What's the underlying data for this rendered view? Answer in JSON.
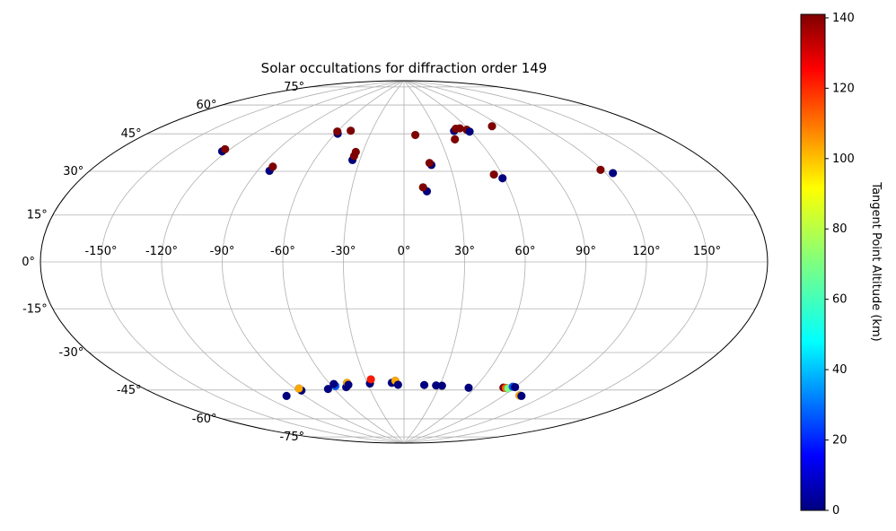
{
  "chart_data": {
    "type": "scatter",
    "projection": "aitoff",
    "title": "Solar occultations for diffraction order 149",
    "xlabel": "",
    "ylabel": "",
    "lon_ticks": [
      "-150°",
      "-120°",
      "-90°",
      "-60°",
      "-30°",
      "0°",
      "30°",
      "60°",
      "90°",
      "120°",
      "150°"
    ],
    "lat_ticks": [
      "75°",
      "60°",
      "45°",
      "30°",
      "15°",
      "0°",
      "-15°",
      "-30°",
      "-45°",
      "-60°",
      "-75°"
    ],
    "grid": true,
    "colorbar": {
      "label": "Tangent Point Altitude (km)",
      "colormap": "jet",
      "range": [
        0,
        141
      ],
      "ticks": [
        "0",
        "20",
        "40",
        "60",
        "80",
        "100",
        "120",
        "140"
      ]
    },
    "points": [
      {
        "lon": -123,
        "lat": 47,
        "alt": 0
      },
      {
        "lon": -123,
        "lat": 48,
        "alt": 141
      },
      {
        "lon": -83,
        "lat": 42,
        "alt": 0
      },
      {
        "lon": -83,
        "lat": 44,
        "alt": 141
      },
      {
        "lon": -58,
        "lat": 62,
        "alt": 0
      },
      {
        "lon": -49,
        "lat": 64,
        "alt": 141
      },
      {
        "lon": -60,
        "lat": 63,
        "alt": 141
      },
      {
        "lon": -35,
        "lat": 50,
        "alt": 0
      },
      {
        "lon": -35,
        "lat": 52,
        "alt": 141
      },
      {
        "lon": -35,
        "lat": 54,
        "alt": 141
      },
      {
        "lon": 10,
        "lat": 63,
        "alt": 141
      },
      {
        "lon": 18,
        "lat": 48,
        "alt": 0
      },
      {
        "lon": 17,
        "lat": 49,
        "alt": 141
      },
      {
        "lon": 13,
        "lat": 35,
        "alt": 0
      },
      {
        "lon": 11,
        "lat": 37,
        "alt": 141
      },
      {
        "lon": 42,
        "lat": 60,
        "alt": 141
      },
      {
        "lon": 46,
        "lat": 64,
        "alt": 0
      },
      {
        "lon": 49,
        "lat": 65,
        "alt": 141
      },
      {
        "lon": 53,
        "lat": 65,
        "alt": 141
      },
      {
        "lon": 58,
        "lat": 64,
        "alt": 141
      },
      {
        "lon": 59,
        "lat": 63,
        "alt": 0
      },
      {
        "lon": 83,
        "lat": 64,
        "alt": 141
      },
      {
        "lon": 59,
        "lat": 40,
        "alt": 0
      },
      {
        "lon": 55,
        "lat": 42,
        "alt": 141
      },
      {
        "lon": 124,
        "lat": 37,
        "alt": 0
      },
      {
        "lon": 119,
        "lat": 39,
        "alt": 141
      },
      {
        "lon": -104,
        "lat": -61,
        "alt": 0
      },
      {
        "lon": -87,
        "lat": -60,
        "alt": 0
      },
      {
        "lon": -87,
        "lat": -59,
        "alt": 100
      },
      {
        "lon": -65,
        "lat": -61,
        "alt": 0
      },
      {
        "lon": -57,
        "lat": -60,
        "alt": 30
      },
      {
        "lon": -57,
        "lat": -59,
        "alt": 0
      },
      {
        "lon": -49,
        "lat": -61,
        "alt": 0
      },
      {
        "lon": -46,
        "lat": -59,
        "alt": 100
      },
      {
        "lon": -46,
        "lat": -60,
        "alt": 0
      },
      {
        "lon": -28,
        "lat": -60,
        "alt": 0
      },
      {
        "lon": -26,
        "lat": -58,
        "alt": 120
      },
      {
        "lon": -10,
        "lat": -60,
        "alt": 0
      },
      {
        "lon": -7,
        "lat": -59,
        "alt": 100
      },
      {
        "lon": -5,
        "lat": -61,
        "alt": 0
      },
      {
        "lon": 17,
        "lat": -61,
        "alt": 0
      },
      {
        "lon": 27,
        "lat": -61,
        "alt": 0
      },
      {
        "lon": 32,
        "lat": -61,
        "alt": 0
      },
      {
        "lon": 55,
        "lat": -61,
        "alt": 0
      },
      {
        "lon": 82,
        "lat": -59,
        "alt": 141
      },
      {
        "lon": 84,
        "lat": -59,
        "alt": 110
      },
      {
        "lon": 86,
        "lat": -59,
        "alt": 70
      },
      {
        "lon": 88,
        "lat": -58,
        "alt": 30
      },
      {
        "lon": 90,
        "lat": -58,
        "alt": 0
      },
      {
        "lon": 102,
        "lat": -61,
        "alt": 100
      },
      {
        "lon": 104,
        "lat": -61,
        "alt": 0
      }
    ]
  }
}
